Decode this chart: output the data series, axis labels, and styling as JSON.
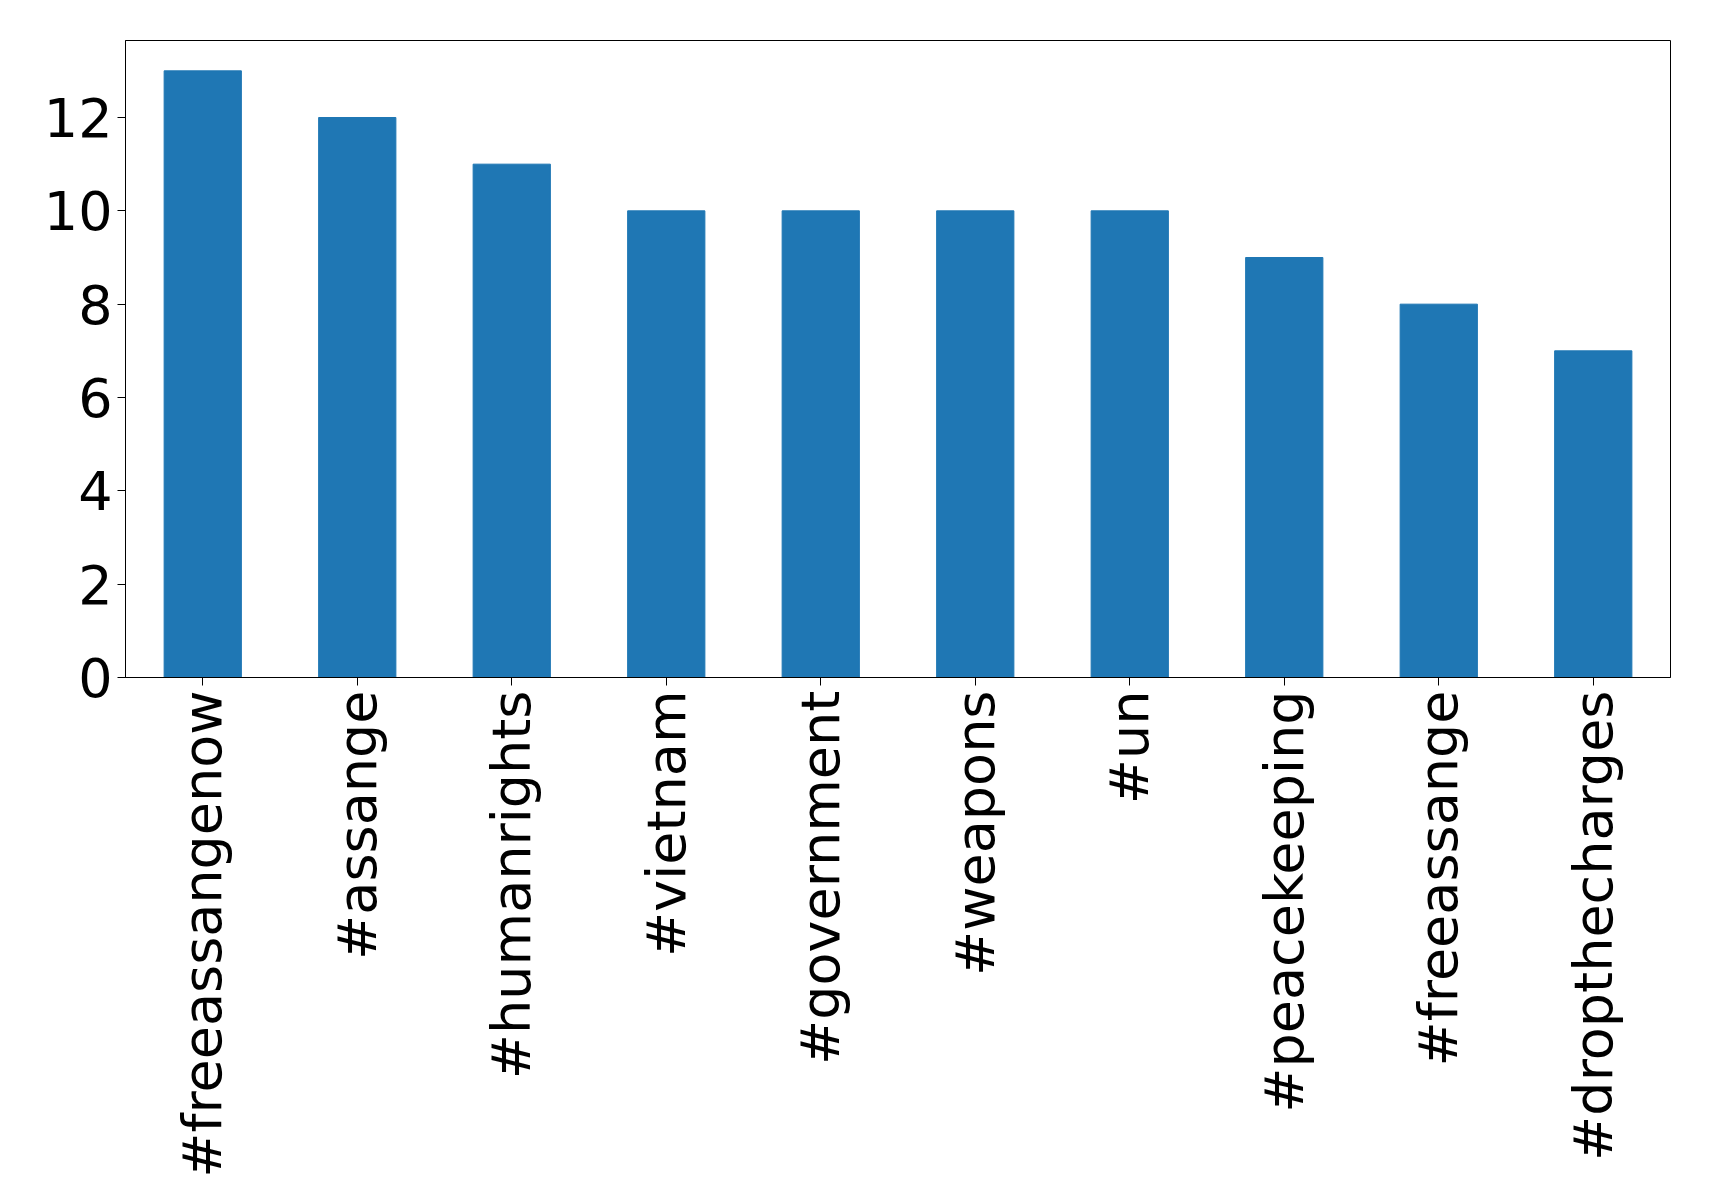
{
  "chart_data": {
    "type": "bar",
    "categories": [
      "#freeassangenow",
      "#assange",
      "#humanrights",
      "#vietnam",
      "#government",
      "#weapons",
      "#un",
      "#peacekeeping",
      "#freeassange",
      "#dropthecharges"
    ],
    "values": [
      13,
      12,
      11,
      10,
      10,
      10,
      10,
      9,
      8,
      7
    ],
    "color": "#1f77b4",
    "ylim": [
      0,
      13.65
    ],
    "yticks": [
      0,
      2,
      4,
      6,
      8,
      10,
      12
    ],
    "grid": false
  }
}
